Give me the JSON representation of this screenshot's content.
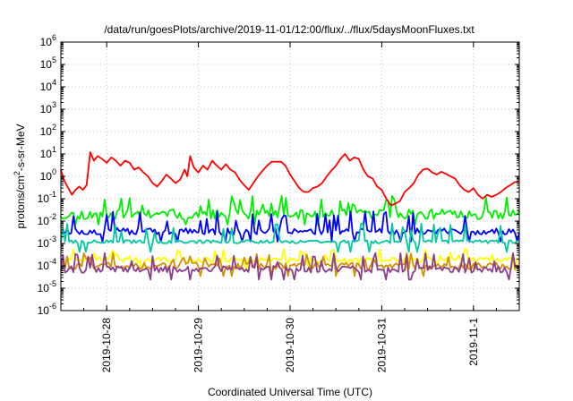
{
  "chart_data": {
    "type": "line",
    "title": "/data/run/goesPlots/archive/2019-11-01/12:00/flux/../flux/5daysMoonFluxes.txt",
    "xlabel": "Coordinated Universal Time (UTC)",
    "ylabel_base": "protons/cm",
    "ylabel_sup": "2",
    "ylabel_rest": "-s-sr-MeV",
    "y_scale": "log",
    "ylim": [
      1e-06,
      1000000.0
    ],
    "y_ticks": [
      {
        "base": "10",
        "exp": "-6",
        "value": 1e-06
      },
      {
        "base": "10",
        "exp": "-5",
        "value": 1e-05
      },
      {
        "base": "10",
        "exp": "-4",
        "value": 0.0001
      },
      {
        "base": "10",
        "exp": "-3",
        "value": 0.001
      },
      {
        "base": "10",
        "exp": "-2",
        "value": 0.01
      },
      {
        "base": "10",
        "exp": "-1",
        "value": 0.1
      },
      {
        "base": "10",
        "exp": "0",
        "value": 1
      },
      {
        "base": "10",
        "exp": "1",
        "value": 10
      },
      {
        "base": "10",
        "exp": "2",
        "value": 100
      },
      {
        "base": "10",
        "exp": "3",
        "value": 1000
      },
      {
        "base": "10",
        "exp": "4",
        "value": 10000
      },
      {
        "base": "10",
        "exp": "5",
        "value": 100000
      },
      {
        "base": "10",
        "exp": "6",
        "value": 1000000
      }
    ],
    "x_unit": "days",
    "xlim": [
      "2019-10-27T12:00",
      "2019-11-01T12:00"
    ],
    "x_ticks": [
      {
        "label": "2019-10-28",
        "day": 0.5
      },
      {
        "label": "2019-10-29",
        "day": 1.5
      },
      {
        "label": "2019-10-30",
        "day": 2.5
      },
      {
        "label": "2019-10-31",
        "day": 3.5
      },
      {
        "label": "2019-11-1",
        "day": 4.5
      }
    ],
    "grid": true,
    "series": [
      {
        "color": "#ff0000",
        "points": [
          [
            0.0,
            2.0
          ],
          [
            0.04,
            0.6
          ],
          [
            0.08,
            0.3
          ],
          [
            0.12,
            0.15
          ],
          [
            0.16,
            0.25
          ],
          [
            0.2,
            0.35
          ],
          [
            0.24,
            0.25
          ],
          [
            0.28,
            0.4
          ],
          [
            0.32,
            12
          ],
          [
            0.36,
            5
          ],
          [
            0.4,
            8
          ],
          [
            0.45,
            6
          ],
          [
            0.5,
            4
          ],
          [
            0.55,
            7
          ],
          [
            0.6,
            5
          ],
          [
            0.65,
            3
          ],
          [
            0.7,
            5
          ],
          [
            0.75,
            4
          ],
          [
            0.8,
            2
          ],
          [
            0.85,
            2.5
          ],
          [
            0.9,
            1.5
          ],
          [
            0.95,
            1.0
          ],
          [
            1.0,
            0.5
          ],
          [
            1.05,
            0.35
          ],
          [
            1.1,
            0.6
          ],
          [
            1.15,
            1.2
          ],
          [
            1.2,
            0.8
          ],
          [
            1.25,
            0.5
          ],
          [
            1.3,
            0.7
          ],
          [
            1.35,
            2.0
          ],
          [
            1.38,
            1.0
          ],
          [
            1.41,
            8
          ],
          [
            1.45,
            2.5
          ],
          [
            1.5,
            1.5
          ],
          [
            1.55,
            3
          ],
          [
            1.6,
            2
          ],
          [
            1.65,
            5
          ],
          [
            1.7,
            3
          ],
          [
            1.75,
            2
          ],
          [
            1.8,
            3.5
          ],
          [
            1.85,
            2
          ],
          [
            1.9,
            1.5
          ],
          [
            1.95,
            0.7
          ],
          [
            2.0,
            0.4
          ],
          [
            2.05,
            0.25
          ],
          [
            2.1,
            0.5
          ],
          [
            2.15,
            1.0
          ],
          [
            2.2,
            1.8
          ],
          [
            2.25,
            3
          ],
          [
            2.3,
            4.5
          ],
          [
            2.4,
            4.5
          ],
          [
            2.45,
            3
          ],
          [
            2.5,
            1.2
          ],
          [
            2.55,
            0.6
          ],
          [
            2.6,
            0.3
          ],
          [
            2.65,
            0.2
          ],
          [
            2.7,
            0.2
          ],
          [
            2.75,
            0.3
          ],
          [
            2.8,
            0.35
          ],
          [
            2.85,
            0.5
          ],
          [
            2.9,
            1
          ],
          [
            2.95,
            1.8
          ],
          [
            3.0,
            3
          ],
          [
            3.05,
            6
          ],
          [
            3.1,
            10
          ],
          [
            3.15,
            5
          ],
          [
            3.2,
            7
          ],
          [
            3.25,
            6
          ],
          [
            3.3,
            2
          ],
          [
            3.35,
            1
          ],
          [
            3.4,
            0.8
          ],
          [
            3.45,
            0.35
          ],
          [
            3.5,
            0.25
          ],
          [
            3.55,
            0.1
          ],
          [
            3.6,
            0.05
          ],
          [
            3.65,
            0.06
          ],
          [
            3.7,
            0.08
          ],
          [
            3.75,
            0.2
          ],
          [
            3.8,
            0.3
          ],
          [
            3.85,
            0.5
          ],
          [
            3.9,
            1.2
          ],
          [
            3.95,
            2
          ],
          [
            4.0,
            2.2
          ],
          [
            4.05,
            1.5
          ],
          [
            4.1,
            1.2
          ],
          [
            4.15,
            1.6
          ],
          [
            4.2,
            1.3
          ],
          [
            4.25,
            1.0
          ],
          [
            4.3,
            0.8
          ],
          [
            4.35,
            0.4
          ],
          [
            4.4,
            0.25
          ],
          [
            4.45,
            0.2
          ],
          [
            4.5,
            0.3
          ],
          [
            4.55,
            0.15
          ],
          [
            4.6,
            0.1
          ],
          [
            4.65,
            0.15
          ],
          [
            4.7,
            0.12
          ],
          [
            4.75,
            0.15
          ],
          [
            4.8,
            0.2
          ],
          [
            4.85,
            0.3
          ],
          [
            4.9,
            0.4
          ],
          [
            4.95,
            0.55
          ],
          [
            5.0,
            0.6
          ]
        ]
      },
      {
        "color": "#00ee00",
        "base": 0.02,
        "spread": 0.45,
        "spikes": 0.09,
        "seed": 11
      },
      {
        "color": "#0000ff",
        "base": 0.0035,
        "spread": 0.3,
        "spikes": 0.018,
        "seed": 23
      },
      {
        "color": "#00c8a0",
        "base": 0.0012,
        "spread": 0.15,
        "spikes": 0.006,
        "seed": 37
      },
      {
        "color": "#ffff00",
        "base": 0.00018,
        "spread": 0.25,
        "spikes": 0.0004,
        "seed": 41
      },
      {
        "color": "#d59000",
        "base": 0.0001,
        "spread": 0.3,
        "spikes": 0.0003,
        "seed": 53
      },
      {
        "color": "#8c3c8c",
        "base": 7e-05,
        "spread": 0.3,
        "spikes": 0.00025,
        "seed": 67
      }
    ]
  }
}
